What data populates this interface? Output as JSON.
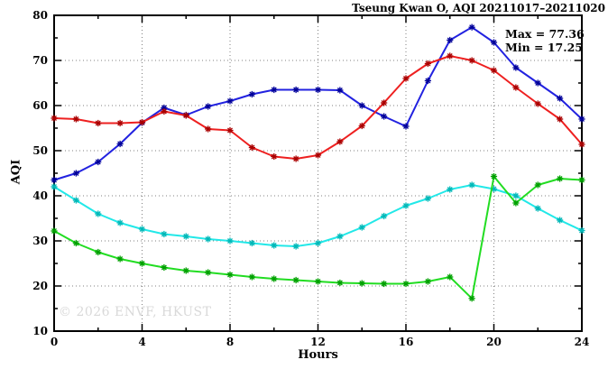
{
  "title": "Tseung Kwan O, AQI 20211017–20211020",
  "annotation": {
    "max_label": "Max = 77.36",
    "min_label": "Min = 17.25"
  },
  "watermark": "© 2026 ENVF, HKUST",
  "chart_data": {
    "type": "line",
    "title": "Tseung Kwan O, AQI 20211017–20211020",
    "xlabel": "Hours",
    "ylabel": "AQI",
    "xlim": [
      0,
      24
    ],
    "ylim": [
      10,
      80
    ],
    "x_major_ticks": [
      0,
      4,
      8,
      12,
      16,
      20,
      24
    ],
    "x_minor_ticks": [
      2,
      6,
      10,
      14,
      18,
      22
    ],
    "y_major_ticks": [
      10,
      20,
      30,
      40,
      50,
      60,
      70,
      80
    ],
    "y_minor_ticks": [
      15,
      25,
      35,
      45,
      55,
      65,
      75
    ],
    "grid_x": [
      4,
      8,
      12,
      16,
      20
    ],
    "grid_y": [
      20,
      30,
      40,
      50,
      60,
      70
    ],
    "grid_on": true,
    "legend": "none",
    "max": 77.36,
    "min": 17.25,
    "x": [
      0,
      1,
      2,
      3,
      4,
      5,
      6,
      7,
      8,
      9,
      10,
      11,
      12,
      13,
      14,
      15,
      16,
      17,
      18,
      19,
      20,
      21,
      22,
      23,
      24
    ],
    "series": [
      {
        "name": "series-blue",
        "line_color": "#2222e0",
        "marker_color": "#000099",
        "values": [
          43.5,
          45,
          47.5,
          51.5,
          56.2,
          59.5,
          57.9,
          59.8,
          61,
          62.5,
          63.5,
          63.5,
          63.5,
          63.4,
          60,
          57.6,
          55.4,
          65.5,
          74.5,
          77.36,
          74,
          68.4,
          65,
          61.6,
          57
        ]
      },
      {
        "name": "series-red",
        "line_color": "#ee2020",
        "marker_color": "#aa0000",
        "values": [
          57.2,
          57,
          56.1,
          56.1,
          56.3,
          58.7,
          57.8,
          54.8,
          54.5,
          50.7,
          48.7,
          48.2,
          49,
          52,
          55.5,
          60.6,
          66,
          69.3,
          71,
          70,
          67.8,
          64,
          60.4,
          57,
          51.4
        ]
      },
      {
        "name": "series-cyan",
        "line_color": "#22e8e8",
        "marker_color": "#00b8b8",
        "values": [
          42,
          39,
          36,
          34,
          32.6,
          31.5,
          31,
          30.4,
          30,
          29.5,
          29,
          28.8,
          29.5,
          31,
          33,
          35.5,
          37.8,
          39.4,
          41.4,
          42.4,
          41.5,
          40,
          37.2,
          34.6,
          32.3
        ]
      },
      {
        "name": "series-green",
        "line_color": "#22dd22",
        "marker_color": "#00a000",
        "values": [
          32.2,
          29.5,
          27.5,
          26,
          25,
          24.1,
          23.4,
          23,
          22.5,
          22,
          21.6,
          21.3,
          21,
          20.7,
          20.6,
          20.5,
          20.5,
          21,
          22,
          17.25,
          44.3,
          38.4,
          42.4,
          43.8,
          43.5
        ]
      }
    ],
    "colors": {
      "grid": "#808080",
      "axis": "#000000",
      "background": "#ffffff",
      "watermark": "#d9d9d9"
    }
  }
}
